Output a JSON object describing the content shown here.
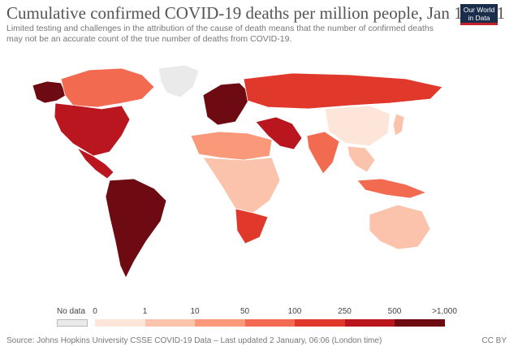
{
  "header": {
    "title": "Cumulative confirmed COVID-19 deaths per million people, Jan 1, 2021",
    "subtitle": "Limited testing and challenges in the attribution of the cause of death means that the number of confirmed deaths may not be an accurate count of the true number of deaths from COVID-19.",
    "logo_line1": "Our World",
    "logo_line2": "in Data"
  },
  "legend": {
    "nodata_label": "No data",
    "ticks": [
      "0",
      "1",
      "10",
      "50",
      "100",
      "250",
      "500",
      ">1,000"
    ],
    "colors": [
      "#fde5d9",
      "#fcc3ac",
      "#f9997a",
      "#f26b50",
      "#e0392b",
      "#b91620",
      "#6d0a12"
    ],
    "nodata_color": "#eaeaea"
  },
  "regions": [
    {
      "name": "North America",
      "level": 5
    },
    {
      "name": "Canada",
      "level": 3
    },
    {
      "name": "Alaska",
      "level": 6
    },
    {
      "name": "Greenland",
      "level": -1
    },
    {
      "name": "Central America",
      "level": 5
    },
    {
      "name": "South America",
      "level": 6
    },
    {
      "name": "Europe",
      "level": 6
    },
    {
      "name": "Russia",
      "level": 4
    },
    {
      "name": "Middle East",
      "level": 5
    },
    {
      "name": "North Africa",
      "level": 2
    },
    {
      "name": "Central Africa",
      "level": 1
    },
    {
      "name": "South Africa",
      "level": 4
    },
    {
      "name": "India",
      "level": 3
    },
    {
      "name": "China",
      "level": 0
    },
    {
      "name": "Southeast Asia",
      "level": 1
    },
    {
      "name": "Indonesia",
      "level": 3
    },
    {
      "name": "Australia",
      "level": 1
    },
    {
      "name": "Japan",
      "level": 1
    }
  ],
  "footer": {
    "source": "Source: Johns Hopkins University CSSE COVID-19 Data – Last updated 2 January, 06:06 (London time)",
    "license": "CC BY"
  }
}
